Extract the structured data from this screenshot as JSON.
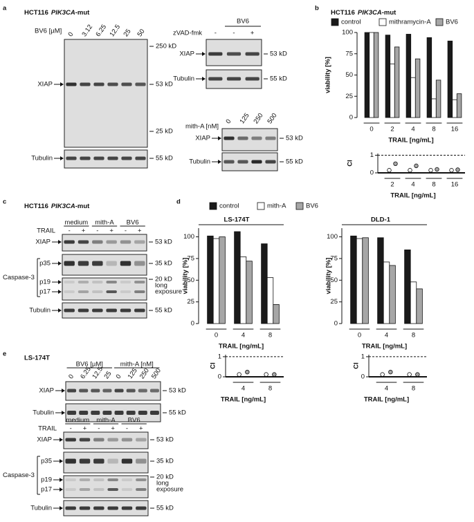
{
  "panel_a": {
    "letter": "a",
    "title": {
      "cell_line": "HCT116",
      "gene": "PIK3CA",
      "suffix": "-mut"
    },
    "blot_bv6": {
      "treatment": "BV6 [µM]",
      "lanes": [
        0,
        3.12,
        6.25,
        12.5,
        25,
        50
      ],
      "xiap": "XIAP",
      "tubulin": "Tubulin",
      "markers": {
        "m250": "250 kD",
        "xiap": "53 kD",
        "m25": "25 kD",
        "tubulin": "55 kD"
      }
    },
    "blot_zvad": {
      "group": "BV6",
      "treatment": "zVAD-fmk",
      "lanes": [
        "-",
        "-",
        "+"
      ],
      "xiap": "XIAP",
      "tubulin": "Tubulin",
      "markers": {
        "xiap": "53 kD",
        "tubulin": "55 kD"
      }
    },
    "blot_mith": {
      "treatment": "mith-A [nM]",
      "lanes": [
        0,
        125,
        250,
        500
      ],
      "xiap": "XIAP",
      "tubulin": "Tubulin",
      "markers": {
        "xiap": "53 kD",
        "tubulin": "55 kD"
      }
    }
  },
  "panel_b": {
    "letter": "b",
    "title": {
      "cell_line": "HCT116",
      "gene": "PIK3CA",
      "suffix": "-mut"
    }
  },
  "panel_c": {
    "letter": "c",
    "title": {
      "cell_line": "HCT116",
      "gene": "PIK3CA",
      "suffix": "-mut"
    },
    "blot": {
      "groups": [
        "medium",
        "mith-A",
        "BV6"
      ],
      "treatment": "TRAIL",
      "lanes": [
        "-",
        "+",
        "-",
        "+",
        "-",
        "+"
      ],
      "rows": {
        "xiap": "XIAP",
        "caspase": "Caspase-3",
        "p35": "p35",
        "p19": "p19",
        "p17": "p17",
        "tubulin": "Tubulin"
      },
      "markers": {
        "xiap": "53 kD",
        "p35": "35 kD",
        "p19": "20 kD",
        "note": [
          "long",
          "exposure"
        ],
        "tubulin": "55 kD"
      }
    }
  },
  "panel_d": {
    "letter": "d"
  },
  "panel_e": {
    "letter": "e",
    "title": "LS-174T",
    "blot_dose": {
      "groups": [
        "BV6 [µM]",
        "mith-A [nM]"
      ],
      "lanes": [
        0,
        6.25,
        12.5,
        25,
        0,
        125,
        250,
        500
      ],
      "xiap": "XIAP",
      "tubulin": "Tubulin",
      "markers": {
        "xiap": "53 kD",
        "tubulin": "55 kD"
      }
    },
    "blot": {
      "groups": [
        "medium",
        "mith-A",
        "BV6"
      ],
      "treatment": "TRAIL",
      "lanes": [
        "-",
        "+",
        "-",
        "+",
        "-",
        "+"
      ],
      "rows": {
        "xiap": "XIAP",
        "caspase": "Caspase-3",
        "p35": "p35",
        "p19": "p19",
        "p17": "p17",
        "tubulin": "Tubulin"
      },
      "markers": {
        "xiap": "53 kD",
        "p35": "35 kD",
        "p19": "20 kD",
        "note": [
          "long",
          "exposure"
        ],
        "tubulin": "55 kD"
      }
    }
  },
  "chart_data": [
    {
      "type": "bar",
      "ylabel": "viability [%]",
      "xlabel": "TRAIL [ng/mL]",
      "categories": [
        0,
        2,
        4,
        8,
        16
      ],
      "ylim": [
        0,
        100
      ],
      "yticks": [
        0,
        25,
        50,
        75,
        100
      ],
      "series": [
        {
          "name": "control",
          "color": "#1a1a1a",
          "values": [
            100,
            97,
            98,
            94,
            90
          ]
        },
        {
          "name": "mithramycin-A",
          "color": "#ffffff",
          "values": [
            100,
            63,
            47,
            22,
            21
          ]
        },
        {
          "name": "BV6",
          "color": "#a6a6a6",
          "values": [
            100,
            83,
            69,
            44,
            28
          ]
        }
      ]
    },
    {
      "type": "scatter",
      "ylabel": "CI",
      "xlabel": "TRAIL [ng/mL]",
      "categories": [
        2,
        4,
        8,
        16
      ],
      "ylim": [
        0,
        1.1
      ],
      "yticks": [
        0,
        1
      ],
      "reference_line": 1,
      "series": [
        {
          "color": "#ffffff",
          "values": [
            0.05,
            0.05,
            0.05,
            0.05
          ]
        },
        {
          "color": "#a6a6a6",
          "values": [
            0.42,
            0.3,
            0.1,
            0.08
          ]
        }
      ]
    },
    {
      "type": "bar",
      "title": "LS-174T",
      "ylabel": "viability [%]",
      "xlabel": "TRAIL [ng/mL]",
      "categories": [
        0,
        4,
        8
      ],
      "ylim": [
        0,
        110
      ],
      "yticks": [
        0,
        25,
        50,
        75,
        100
      ],
      "series": [
        {
          "name": "control",
          "color": "#1a1a1a",
          "values": [
            101,
            106,
            92
          ]
        },
        {
          "name": "mith-A",
          "color": "#ffffff",
          "values": [
            98,
            77,
            53
          ]
        },
        {
          "name": "BV6",
          "color": "#a6a6a6",
          "values": [
            100,
            72,
            22
          ]
        }
      ]
    },
    {
      "type": "scatter",
      "ylabel": "CI",
      "xlabel": "TRAIL [ng/mL]",
      "categories": [
        4,
        8
      ],
      "ylim": [
        0,
        1.1
      ],
      "yticks": [
        0,
        1
      ],
      "reference_line": 1,
      "series": [
        {
          "color": "#ffffff",
          "values": [
            0.03,
            0.03
          ]
        },
        {
          "color": "#a6a6a6",
          "values": [
            0.15,
            0.03
          ]
        }
      ]
    },
    {
      "type": "bar",
      "title": "DLD-1",
      "ylabel": "viability [%]",
      "xlabel": "TRAIL [ng/mL]",
      "categories": [
        0,
        4,
        8
      ],
      "ylim": [
        0,
        110
      ],
      "yticks": [
        0,
        25,
        50,
        75,
        100
      ],
      "series": [
        {
          "color": "#1a1a1a",
          "values": [
            101,
            99,
            85
          ]
        },
        {
          "color": "#ffffff",
          "values": [
            98,
            71,
            48
          ]
        },
        {
          "color": "#a6a6a6",
          "values": [
            99,
            67,
            40
          ]
        }
      ]
    },
    {
      "type": "scatter",
      "ylabel": "CI",
      "xlabel": "TRAIL [ng/mL]",
      "categories": [
        4,
        8
      ],
      "ylim": [
        0,
        1.1
      ],
      "yticks": [
        0,
        1
      ],
      "reference_line": 1,
      "series": [
        {
          "color": "#ffffff",
          "values": [
            0.03,
            0.03
          ]
        },
        {
          "color": "#a6a6a6",
          "values": [
            0.15,
            0.03
          ]
        }
      ]
    }
  ]
}
